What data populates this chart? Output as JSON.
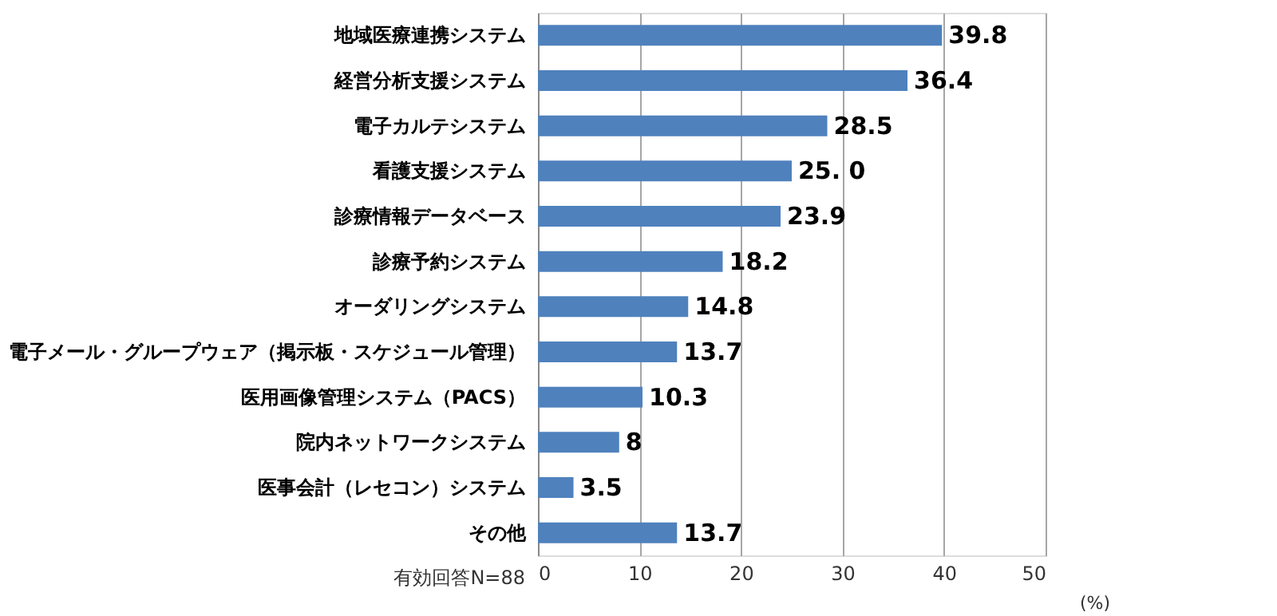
{
  "chart_data": {
    "type": "bar",
    "orientation": "horizontal",
    "categories": [
      "地域医療連携システム",
      "経営分析支援システム",
      "電子カルテシステム",
      "看護支援システム",
      "診療情報データベース",
      "診療予約システム",
      "オーダリングシステム",
      "電子メール・グループウェア（掲示板・スケジュール管理）",
      "医用画像管理システム（PACS）",
      "院内ネットワークシステム",
      "医事会計（レセコン）システム",
      "その他"
    ],
    "values": [
      39.8,
      36.4,
      28.5,
      25.0,
      23.9,
      18.2,
      14.8,
      13.7,
      10.3,
      8,
      3.5,
      13.7
    ],
    "value_labels": [
      "39.8",
      "36.4",
      "28.5",
      "25. 0",
      "23.9",
      "18.2",
      "14.8",
      "13.7",
      "10.3",
      "8",
      "3.5",
      "13.7"
    ],
    "color": "#4f81bd",
    "xlim": [
      0,
      50
    ],
    "xticks": [
      0,
      10,
      20,
      30,
      40,
      50
    ],
    "grid": "x",
    "xlabel": "(%)",
    "annotations": [
      "有効回答N=88"
    ]
  }
}
